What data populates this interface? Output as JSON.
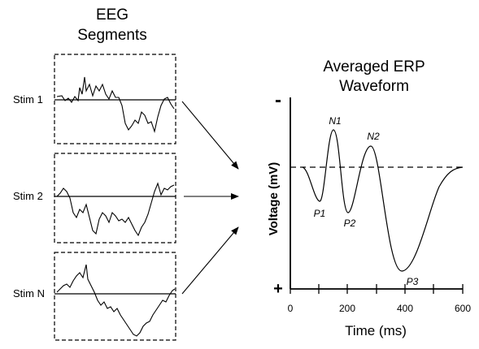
{
  "left_panel": {
    "title_line1": "EEG",
    "title_line2": "Segments",
    "segments": [
      {
        "label": "Stim 1"
      },
      {
        "label": "Stim 2"
      },
      {
        "label": "Stim N"
      }
    ]
  },
  "right_panel": {
    "title_line1": "Averaged ERP",
    "title_line2": "Waveform",
    "y_label": "Voltage (mV)",
    "y_top_sign": "-",
    "y_bottom_sign": "+",
    "x_label": "Time (ms)",
    "x_ticks": [
      "0",
      "200",
      "400",
      "600"
    ],
    "peaks": {
      "n1": "N1",
      "n2": "N2",
      "p1": "P1",
      "p2": "P2",
      "p3": "P3"
    }
  },
  "colors": {
    "ink": "#000000",
    "background": "#ffffff"
  }
}
